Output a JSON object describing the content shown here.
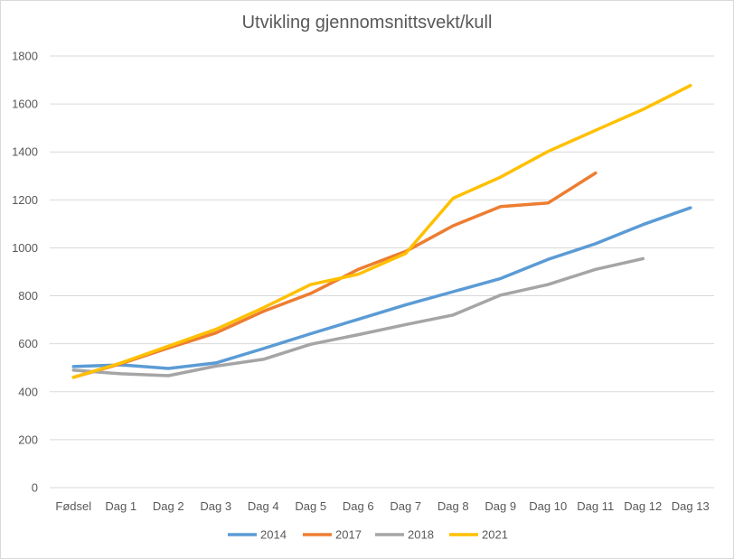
{
  "chart_data": {
    "type": "line",
    "title": "Utvikling gjennomsnittsvekt/kull",
    "xlabel": "",
    "ylabel": "",
    "categories": [
      "Fødsel",
      "Dag 1",
      "Dag 2",
      "Dag 3",
      "Dag 4",
      "Dag 5",
      "Dag 6",
      "Dag 7",
      "Dag 8",
      "Dag 9",
      "Dag 10",
      "Dag 11",
      "Dag 12",
      "Dag 13"
    ],
    "ylim": [
      0,
      1800
    ],
    "yticks": [
      0,
      200,
      400,
      600,
      800,
      1000,
      1200,
      1400,
      1600,
      1800
    ],
    "grid": true,
    "legend_position": "bottom",
    "series": [
      {
        "name": "2014",
        "color": "#5b9bd5",
        "values": [
          505,
          512,
          497,
          520,
          580,
          642,
          702,
          762,
          817,
          872,
          952,
          1017,
          1097,
          1167
        ]
      },
      {
        "name": "2017",
        "color": "#ed7d31",
        "values": [
          460,
          517,
          582,
          645,
          735,
          810,
          910,
          985,
          1092,
          1172,
          1187,
          1312,
          null,
          null
        ]
      },
      {
        "name": "2018",
        "color": "#a5a5a5",
        "values": [
          490,
          475,
          467,
          507,
          535,
          598,
          638,
          680,
          720,
          803,
          847,
          910,
          955,
          null
        ]
      },
      {
        "name": "2021",
        "color": "#ffc000",
        "values": [
          460,
          520,
          590,
          660,
          750,
          847,
          890,
          977,
          1207,
          1295,
          1402,
          1490,
          1577,
          1677
        ]
      }
    ]
  }
}
